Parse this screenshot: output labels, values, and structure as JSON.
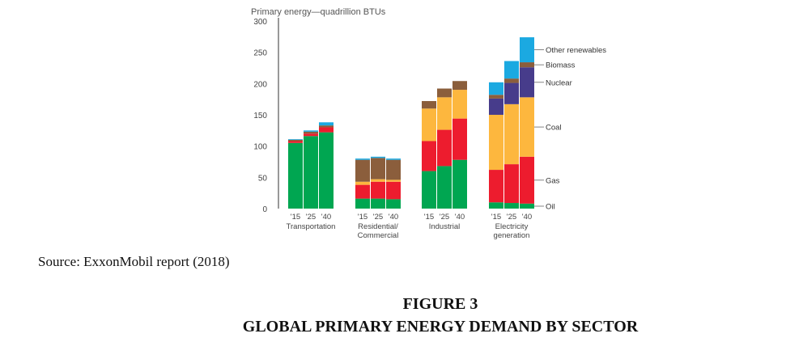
{
  "caption": {
    "source": "Source: ExxonMobil report (2018)",
    "figure_number": "FIGURE 3",
    "figure_title": "GLOBAL PRIMARY ENERGY DEMAND BY SECTOR"
  },
  "chart_data": {
    "type": "bar",
    "stacked": true,
    "ylabel": "Primary energy—quadrillion BTUs",
    "ylim": [
      0,
      300
    ],
    "yticks": [
      0,
      50,
      100,
      150,
      200,
      250,
      300
    ],
    "years": [
      "'15",
      "'25",
      "'40"
    ],
    "groups": [
      {
        "name": "Transportation",
        "label_lines": [
          "Transportation"
        ]
      },
      {
        "name": "Residential/Commercial",
        "label_lines": [
          "Residential/",
          "Commercial"
        ]
      },
      {
        "name": "Industrial",
        "label_lines": [
          "Industrial"
        ]
      },
      {
        "name": "Electricity generation",
        "label_lines": [
          "Electricity",
          "generation"
        ]
      }
    ],
    "series": [
      {
        "name": "Oil",
        "color": "#00a651",
        "values": [
          [
            105,
            116,
            122
          ],
          [
            16,
            16,
            15
          ],
          [
            60,
            68,
            78
          ],
          [
            10,
            9,
            8
          ]
        ]
      },
      {
        "name": "Gas",
        "color": "#ed1c2e",
        "values": [
          [
            3,
            4,
            8
          ],
          [
            22,
            27,
            28
          ],
          [
            48,
            58,
            66
          ],
          [
            52,
            62,
            75
          ]
        ]
      },
      {
        "name": "Coal",
        "color": "#fdb73e",
        "values": [
          [
            0,
            0,
            0
          ],
          [
            5,
            4,
            3
          ],
          [
            52,
            52,
            46
          ],
          [
            88,
            96,
            95
          ]
        ]
      },
      {
        "name": "Nuclear",
        "color": "#473c8b",
        "values": [
          [
            0,
            0,
            0
          ],
          [
            0,
            0,
            0
          ],
          [
            0,
            0,
            0
          ],
          [
            26,
            34,
            48
          ]
        ]
      },
      {
        "name": "Biomass",
        "color": "#8b5e3c",
        "values": [
          [
            2,
            3,
            3
          ],
          [
            35,
            34,
            32
          ],
          [
            12,
            14,
            14
          ],
          [
            6,
            7,
            8
          ]
        ]
      },
      {
        "name": "Other renewables",
        "color": "#1ba9e1",
        "values": [
          [
            1,
            2,
            5
          ],
          [
            2,
            2,
            2
          ],
          [
            0,
            0,
            0
          ],
          [
            20,
            28,
            40
          ]
        ]
      }
    ],
    "grid": false,
    "legend": "right"
  }
}
